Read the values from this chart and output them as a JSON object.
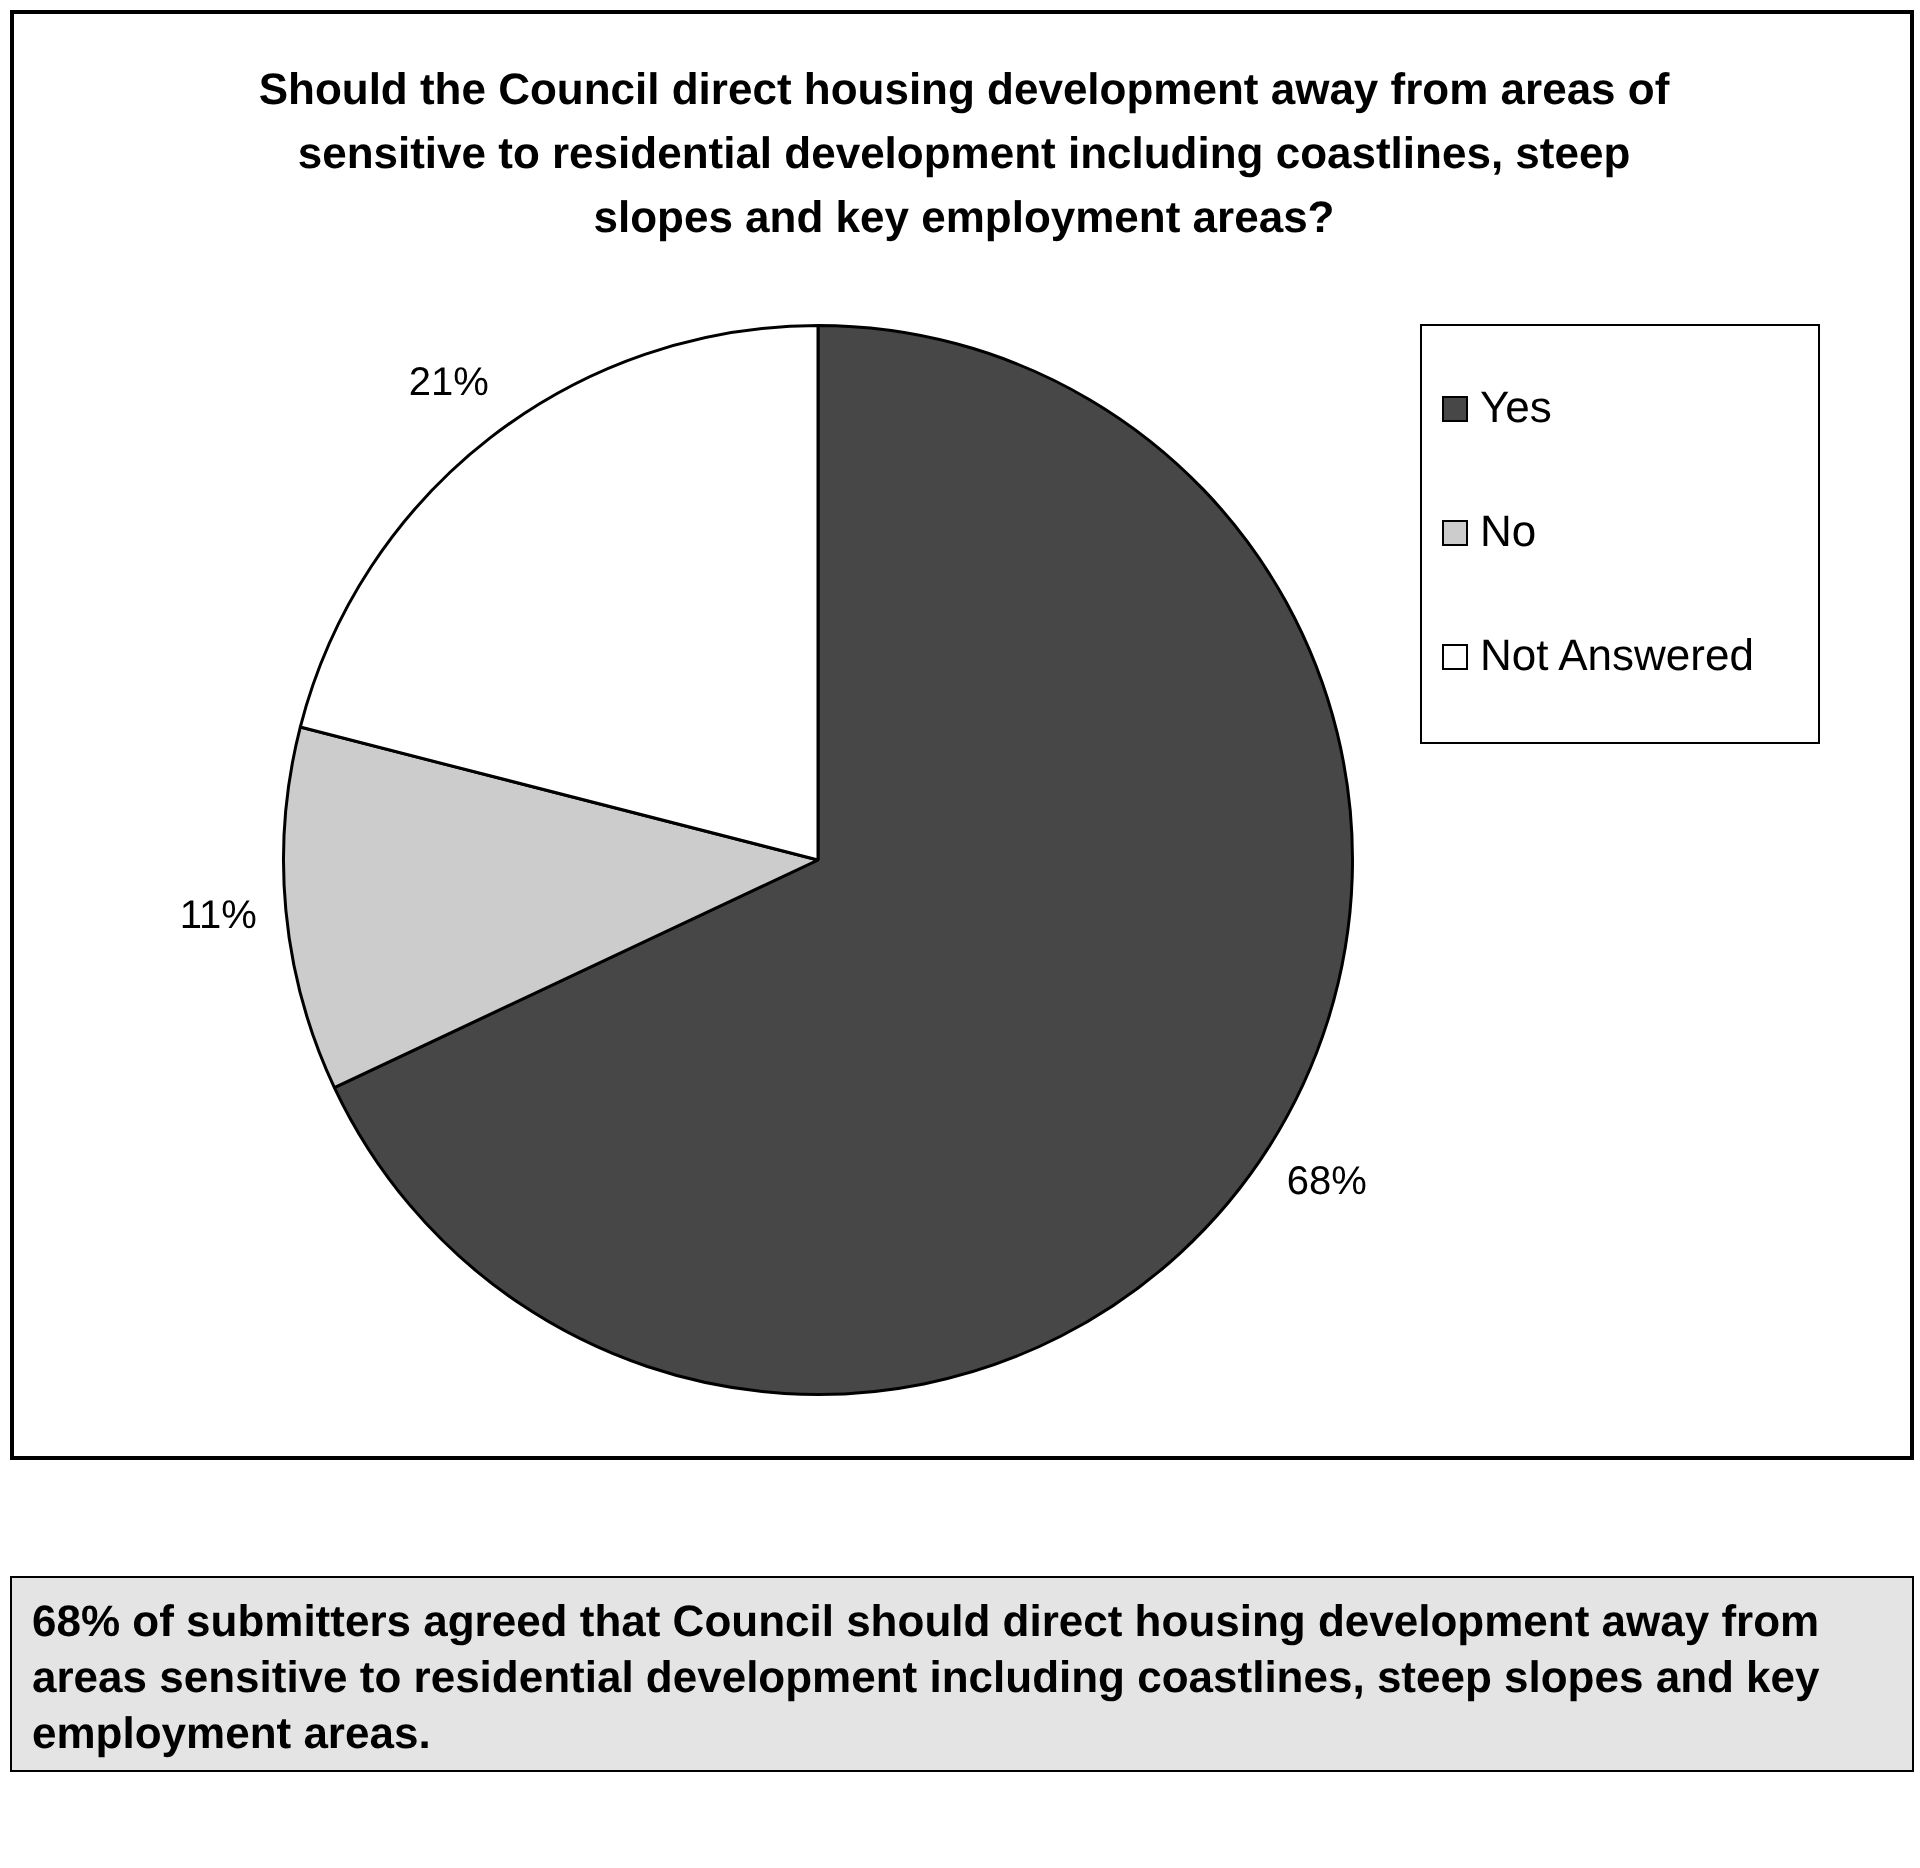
{
  "chart_data": {
    "type": "pie",
    "title": "Should the Council direct housing development away from areas of sensitive to residential development including coastlines, steep slopes and key employment areas?",
    "categories": [
      "Yes",
      "No",
      "Not Answered"
    ],
    "values": [
      68,
      11,
      21
    ],
    "value_labels": [
      "68%",
      "11%",
      "21%"
    ],
    "colors": [
      "#474747",
      "#cccccc",
      "#ffffff"
    ],
    "legend": "right",
    "annotations": [
      "68% of submitters agreed that Council should direct housing development away from areas sensitive to residential development including coastlines, steep slopes and key employment areas."
    ]
  }
}
